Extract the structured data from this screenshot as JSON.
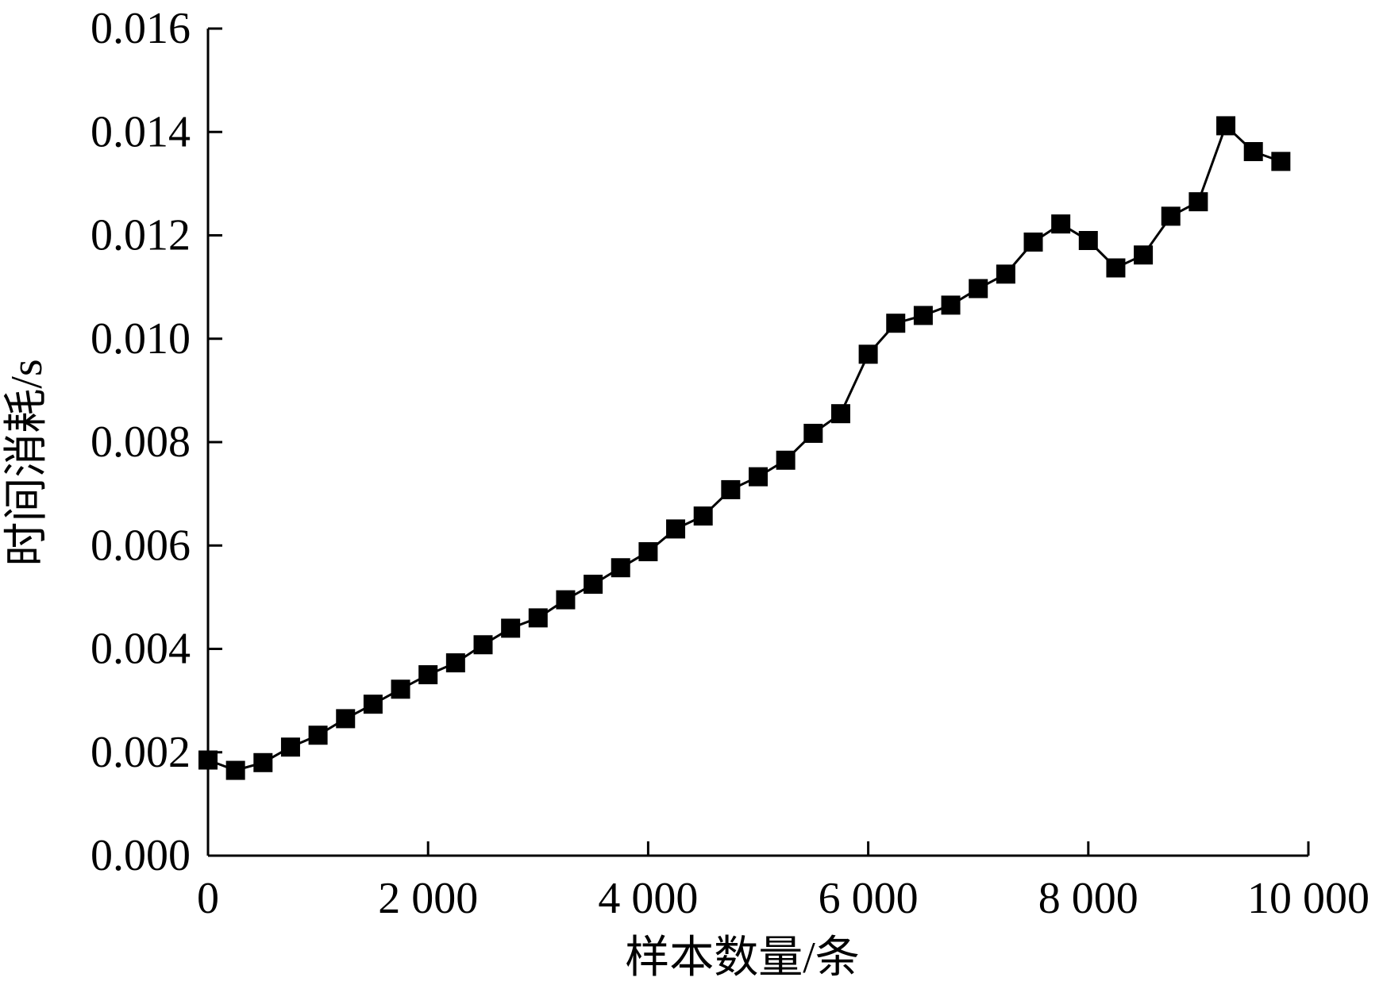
{
  "chart_data": {
    "type": "line",
    "title": "",
    "xlabel": "样本数量/条",
    "ylabel": "时间消耗/s",
    "xlim": [
      0,
      10000
    ],
    "ylim": [
      0,
      0.016
    ],
    "x_ticks": [
      0,
      2000,
      4000,
      6000,
      8000,
      10000
    ],
    "x_tick_labels": [
      "0",
      "2 000",
      "4 000",
      "6 000",
      "8 000",
      "10 000"
    ],
    "y_ticks": [
      0,
      0.002,
      0.004,
      0.006,
      0.008,
      0.01,
      0.012,
      0.014,
      0.016
    ],
    "y_tick_labels": [
      "0.000",
      "0.002",
      "0.004",
      "0.006",
      "0.008",
      "0.010",
      "0.012",
      "0.014",
      "0.016"
    ],
    "grid": false,
    "legend": "none",
    "marker": "square",
    "series": [
      {
        "color": "#000000",
        "x": [
          0,
          250,
          500,
          750,
          1000,
          1250,
          1500,
          1750,
          2000,
          2250,
          2500,
          2750,
          3000,
          3250,
          3500,
          3750,
          4000,
          4250,
          4500,
          4750,
          5000,
          5250,
          5500,
          5750,
          6000,
          6250,
          6500,
          6750,
          7000,
          7250,
          7500,
          7750,
          8000,
          8250,
          8500,
          8750,
          9000,
          9250,
          9500,
          9750
        ],
        "values": [
          0.00185,
          0.00165,
          0.0018,
          0.0021,
          0.00233,
          0.00265,
          0.00293,
          0.00322,
          0.0035,
          0.00373,
          0.00408,
          0.0044,
          0.0046,
          0.00495,
          0.00525,
          0.00557,
          0.00588,
          0.00632,
          0.00657,
          0.00708,
          0.00733,
          0.00765,
          0.00817,
          0.00855,
          0.0097,
          0.0103,
          0.01045,
          0.01065,
          0.01097,
          0.01125,
          0.01187,
          0.01222,
          0.0119,
          0.01137,
          0.01162,
          0.01237,
          0.01265,
          0.01412,
          0.01362,
          0.01343
        ]
      }
    ]
  }
}
